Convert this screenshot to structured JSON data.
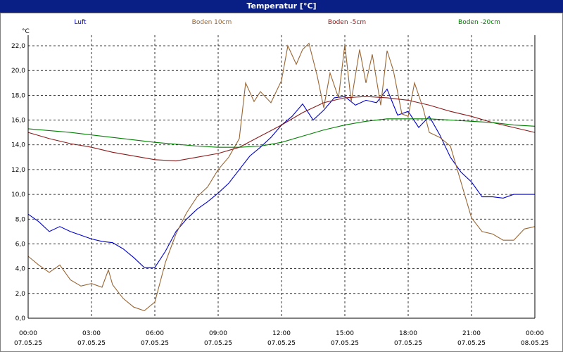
{
  "window": {
    "title": "Temperatur [°C]"
  },
  "chart_data": {
    "type": "line",
    "title": "Temperatur [°C]",
    "ylabel": "°C",
    "xlabel": "",
    "ylim": [
      0,
      22
    ],
    "yticks": [
      "0,0",
      "2,0",
      "4,0",
      "6,0",
      "8,0",
      "10,0",
      "12,0",
      "14,0",
      "16,0",
      "18,0",
      "20,0",
      "22,0"
    ],
    "xlim": [
      0,
      24
    ],
    "xticks": [
      {
        "time": "00:00",
        "date": "07.05.25"
      },
      {
        "time": "03:00",
        "date": "07.05.25"
      },
      {
        "time": "06:00",
        "date": "07.05.25"
      },
      {
        "time": "09:00",
        "date": "07.05.25"
      },
      {
        "time": "12:00",
        "date": "07.05.25"
      },
      {
        "time": "15:00",
        "date": "07.05.25"
      },
      {
        "time": "18:00",
        "date": "07.05.25"
      },
      {
        "time": "21:00",
        "date": "07.05.25"
      },
      {
        "time": "00:00",
        "date": "08.05.25"
      }
    ],
    "grid": true,
    "legend_position": "top",
    "series": [
      {
        "name": "Luft",
        "color": "#0000cc",
        "points": [
          [
            0,
            8.4
          ],
          [
            0.5,
            7.8
          ],
          [
            1,
            7.0
          ],
          [
            1.5,
            7.4
          ],
          [
            2,
            7.0
          ],
          [
            2.5,
            6.7
          ],
          [
            3,
            6.4
          ],
          [
            3.5,
            6.2
          ],
          [
            4,
            6.1
          ],
          [
            4.5,
            5.6
          ],
          [
            5,
            4.9
          ],
          [
            5.5,
            4.1
          ],
          [
            6,
            4.1
          ],
          [
            6.5,
            5.4
          ],
          [
            7,
            7.0
          ],
          [
            7.5,
            8.0
          ],
          [
            8,
            8.8
          ],
          [
            8.5,
            9.4
          ],
          [
            9,
            10.1
          ],
          [
            9.5,
            10.9
          ],
          [
            10,
            12.0
          ],
          [
            10.5,
            13.1
          ],
          [
            11,
            13.8
          ],
          [
            11.5,
            14.6
          ],
          [
            12,
            15.6
          ],
          [
            12.5,
            16.3
          ],
          [
            13,
            17.3
          ],
          [
            13.5,
            16.0
          ],
          [
            14,
            16.8
          ],
          [
            14.5,
            17.8
          ],
          [
            15,
            17.9
          ],
          [
            15.5,
            17.2
          ],
          [
            16,
            17.6
          ],
          [
            16.5,
            17.4
          ],
          [
            17,
            18.5
          ],
          [
            17.5,
            16.4
          ],
          [
            18,
            16.7
          ],
          [
            18.5,
            15.4
          ],
          [
            19,
            16.3
          ],
          [
            19.5,
            14.8
          ],
          [
            20,
            13.0
          ],
          [
            20.5,
            11.8
          ],
          [
            21,
            11.0
          ],
          [
            21.5,
            9.8
          ],
          [
            22,
            9.8
          ],
          [
            22.5,
            9.7
          ],
          [
            23,
            10.0
          ],
          [
            23.5,
            10.0
          ],
          [
            24,
            10.0
          ]
        ]
      },
      {
        "name": "Boden 10cm",
        "color": "#996633",
        "points": [
          [
            0,
            5.0
          ],
          [
            0.5,
            4.3
          ],
          [
            1,
            3.7
          ],
          [
            1.5,
            4.3
          ],
          [
            2,
            3.1
          ],
          [
            2.5,
            2.6
          ],
          [
            3,
            2.8
          ],
          [
            3.5,
            2.5
          ],
          [
            3.8,
            3.9
          ],
          [
            4,
            2.7
          ],
          [
            4.5,
            1.6
          ],
          [
            5,
            0.9
          ],
          [
            5.5,
            0.6
          ],
          [
            6,
            1.3
          ],
          [
            6.5,
            4.5
          ],
          [
            7,
            6.8
          ],
          [
            7.5,
            8.5
          ],
          [
            8,
            9.8
          ],
          [
            8.5,
            10.6
          ],
          [
            9,
            12.0
          ],
          [
            9.5,
            13.0
          ],
          [
            10,
            14.5
          ],
          [
            10.3,
            19.0
          ],
          [
            10.7,
            17.5
          ],
          [
            11,
            18.3
          ],
          [
            11.5,
            17.4
          ],
          [
            12,
            19.2
          ],
          [
            12.3,
            22.0
          ],
          [
            12.7,
            20.5
          ],
          [
            13,
            21.7
          ],
          [
            13.3,
            22.2
          ],
          [
            13.7,
            19.5
          ],
          [
            14,
            17.0
          ],
          [
            14.3,
            19.8
          ],
          [
            14.7,
            17.8
          ],
          [
            15,
            22.1
          ],
          [
            15.3,
            17.5
          ],
          [
            15.7,
            21.7
          ],
          [
            16,
            19.0
          ],
          [
            16.3,
            21.3
          ],
          [
            16.7,
            17.2
          ],
          [
            17,
            21.6
          ],
          [
            17.3,
            20.0
          ],
          [
            17.7,
            16.5
          ],
          [
            18,
            16.3
          ],
          [
            18.3,
            19.0
          ],
          [
            18.7,
            17.0
          ],
          [
            19,
            15.0
          ],
          [
            19.5,
            14.6
          ],
          [
            20,
            13.9
          ],
          [
            20.5,
            11.0
          ],
          [
            21,
            8.1
          ],
          [
            21.5,
            7.0
          ],
          [
            22,
            6.8
          ],
          [
            22.5,
            6.3
          ],
          [
            23,
            6.3
          ],
          [
            23.5,
            7.2
          ],
          [
            24,
            7.4
          ]
        ]
      },
      {
        "name": "Boden -5cm",
        "color": "#8b1a1a",
        "points": [
          [
            0,
            15.0
          ],
          [
            1,
            14.5
          ],
          [
            2,
            14.1
          ],
          [
            3,
            13.8
          ],
          [
            4,
            13.4
          ],
          [
            5,
            13.1
          ],
          [
            6,
            12.8
          ],
          [
            7,
            12.7
          ],
          [
            8,
            13.0
          ],
          [
            9,
            13.3
          ],
          [
            10,
            13.8
          ],
          [
            11,
            14.7
          ],
          [
            12,
            15.6
          ],
          [
            13,
            16.6
          ],
          [
            14,
            17.4
          ],
          [
            15,
            17.8
          ],
          [
            16,
            17.9
          ],
          [
            17,
            17.8
          ],
          [
            18,
            17.6
          ],
          [
            19,
            17.2
          ],
          [
            20,
            16.7
          ],
          [
            21,
            16.3
          ],
          [
            22,
            15.8
          ],
          [
            23,
            15.4
          ],
          [
            24,
            15.0
          ]
        ]
      },
      {
        "name": "Boden -20cm",
        "color": "#008000",
        "points": [
          [
            0,
            15.3
          ],
          [
            2,
            15.0
          ],
          [
            4,
            14.6
          ],
          [
            6,
            14.2
          ],
          [
            8,
            13.9
          ],
          [
            9,
            13.8
          ],
          [
            10,
            13.8
          ],
          [
            11,
            13.9
          ],
          [
            12,
            14.2
          ],
          [
            13,
            14.7
          ],
          [
            14,
            15.2
          ],
          [
            15,
            15.6
          ],
          [
            16,
            15.9
          ],
          [
            17,
            16.1
          ],
          [
            18,
            16.1
          ],
          [
            19,
            16.1
          ],
          [
            20,
            16.0
          ],
          [
            21,
            15.9
          ],
          [
            22,
            15.8
          ],
          [
            23,
            15.6
          ],
          [
            24,
            15.5
          ]
        ]
      }
    ]
  }
}
